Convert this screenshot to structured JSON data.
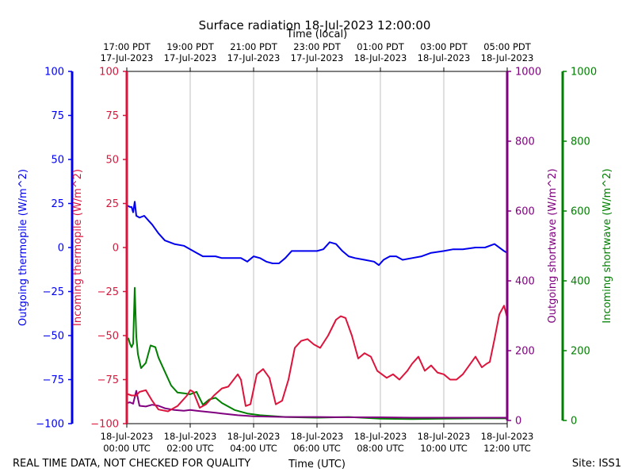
{
  "chart_data": {
    "type": "line",
    "title": "Surface radiation 18-Jul-2023 12:00:00",
    "top_axis_label": "Time (local)",
    "xlabel": "Time (UTC)",
    "footer_left": "REAL TIME DATA, NOT CHECKED FOR QUALITY",
    "footer_right": "Site: ISS1",
    "xlim": [
      0,
      12
    ],
    "x_ticks": [
      0,
      2,
      4,
      6,
      8,
      10,
      12
    ],
    "x_tick_labels_utc": [
      [
        "18-Jul-2023",
        "00:00 UTC"
      ],
      [
        "18-Jul-2023",
        "02:00 UTC"
      ],
      [
        "18-Jul-2023",
        "04:00 UTC"
      ],
      [
        "18-Jul-2023",
        "06:00 UTC"
      ],
      [
        "18-Jul-2023",
        "08:00 UTC"
      ],
      [
        "18-Jul-2023",
        "10:00 UTC"
      ],
      [
        "18-Jul-2023",
        "12:00 UTC"
      ]
    ],
    "x_tick_labels_local": [
      [
        "17:00 PDT",
        "17-Jul-2023"
      ],
      [
        "19:00 PDT",
        "17-Jul-2023"
      ],
      [
        "21:00 PDT",
        "17-Jul-2023"
      ],
      [
        "23:00 PDT",
        "17-Jul-2023"
      ],
      [
        "01:00 PDT",
        "18-Jul-2023"
      ],
      [
        "03:00 PDT",
        "18-Jul-2023"
      ],
      [
        "05:00 PDT",
        "18-Jul-2023"
      ]
    ],
    "axes": [
      {
        "id": "out_therm",
        "label": "Outgoing thermopile (W/m^2)",
        "color": "#0000ee",
        "ylim": [
          -100,
          100
        ],
        "ticks": [
          -100,
          -75,
          -50,
          -25,
          0,
          25,
          50,
          75,
          100
        ],
        "tick_labels": [
          "−100",
          "−75",
          "−50",
          "−25",
          "0",
          "25",
          "50",
          "75",
          "100"
        ]
      },
      {
        "id": "in_therm",
        "label": "Incoming thermopile (W/m^2)",
        "color": "#dc143c",
        "ylim": [
          -100,
          100
        ],
        "ticks": [
          -100,
          -75,
          -50,
          -25,
          0,
          25,
          50,
          75,
          100
        ],
        "tick_labels": [
          "−100",
          "−75",
          "−50",
          "−25",
          "0",
          "25",
          "50",
          "75",
          "100"
        ]
      },
      {
        "id": "out_sw",
        "label": "Outgoing shortwave (W/m^2)",
        "color": "#800080",
        "ylim": [
          0,
          1000
        ],
        "ticks": [
          0,
          200,
          400,
          600,
          800,
          1000
        ],
        "tick_labels": [
          "0",
          "200",
          "400",
          "600",
          "800",
          "1000"
        ]
      },
      {
        "id": "in_sw",
        "label": "Incoming shortwave (W/m^2)",
        "color": "#008000",
        "ylim": [
          0,
          1000
        ],
        "ticks": [
          0,
          200,
          400,
          600,
          800,
          1000
        ],
        "tick_labels": [
          "0",
          "200",
          "400",
          "600",
          "800",
          "1000"
        ]
      }
    ],
    "series": [
      {
        "name": "Outgoing thermopile",
        "axis": "out_therm",
        "color": "#0000ee",
        "x": [
          0,
          0.1,
          0.15,
          0.2,
          0.25,
          0.3,
          0.4,
          0.55,
          0.7,
          0.8,
          1.0,
          1.2,
          1.5,
          1.8,
          2.0,
          2.2,
          2.4,
          2.6,
          2.8,
          3.0,
          3.3,
          3.6,
          3.8,
          4.0,
          4.2,
          4.4,
          4.6,
          4.8,
          5.0,
          5.2,
          5.5,
          5.8,
          6.0,
          6.2,
          6.4,
          6.6,
          6.8,
          7.0,
          7.2,
          7.5,
          7.8,
          7.95,
          8.1,
          8.2,
          8.3,
          8.5,
          8.7,
          9.0,
          9.3,
          9.6,
          10.0,
          10.3,
          10.6,
          11.0,
          11.3,
          11.6,
          11.9,
          12.0
        ],
        "y": [
          24,
          23,
          23,
          20,
          26,
          18,
          17,
          18,
          15,
          13,
          8,
          4,
          2,
          1,
          -1,
          -3,
          -5,
          -5,
          -5,
          -6,
          -6,
          -6,
          -8,
          -5,
          -6,
          -8,
          -9,
          -9,
          -6,
          -2,
          -2,
          -2,
          -2,
          -1,
          3,
          2,
          -2,
          -5,
          -6,
          -7,
          -8,
          -10,
          -7,
          -6,
          -5,
          -5,
          -7,
          -6,
          -5,
          -3,
          -2,
          -1,
          -1,
          0,
          0,
          2,
          -2,
          -3
        ]
      },
      {
        "name": "Incoming thermopile",
        "axis": "in_therm",
        "color": "#dc143c",
        "x": [
          0,
          0.15,
          0.3,
          0.4,
          0.6,
          0.8,
          1.0,
          1.3,
          1.6,
          1.9,
          2.0,
          2.1,
          2.3,
          2.5,
          2.75,
          3.0,
          3.2,
          3.5,
          3.6,
          3.75,
          3.9,
          4.1,
          4.3,
          4.5,
          4.7,
          4.9,
          5.1,
          5.3,
          5.5,
          5.7,
          5.9,
          6.1,
          6.35,
          6.6,
          6.75,
          6.9,
          7.1,
          7.3,
          7.5,
          7.7,
          7.9,
          8.2,
          8.4,
          8.6,
          8.85,
          9.0,
          9.2,
          9.4,
          9.6,
          9.8,
          10.0,
          10.2,
          10.4,
          10.6,
          10.8,
          11.0,
          11.2,
          11.35,
          11.45,
          11.6,
          11.75,
          11.9,
          12.0
        ],
        "y": [
          -83,
          -84,
          -84,
          -82,
          -81,
          -87,
          -92,
          -93,
          -90,
          -84,
          -81,
          -82,
          -91,
          -89,
          -84,
          -80,
          -79,
          -72,
          -75,
          -90,
          -89,
          -72,
          -69,
          -74,
          -89,
          -87,
          -75,
          -57,
          -53,
          -52,
          -55,
          -57,
          -50,
          -41,
          -39,
          -40,
          -50,
          -63,
          -60,
          -62,
          -70,
          -74,
          -72,
          -75,
          -70,
          -66,
          -62,
          -70,
          -67,
          -71,
          -72,
          -75,
          -75,
          -72,
          -67,
          -62,
          -68,
          -66,
          -65,
          -52,
          -38,
          -33,
          -40
        ]
      },
      {
        "name": "Outgoing shortwave",
        "axis": "out_sw",
        "color": "#800080",
        "x": [
          0,
          0.1,
          0.2,
          0.3,
          0.4,
          0.6,
          0.8,
          1.0,
          1.2,
          1.5,
          1.8,
          2.0,
          2.2,
          2.5,
          2.8,
          3.0,
          3.5,
          4.0,
          5.0,
          6.0,
          7.0,
          8.0,
          9.0,
          10.0,
          11.0,
          12.0
        ],
        "y": [
          50,
          52,
          48,
          85,
          42,
          40,
          45,
          42,
          35,
          30,
          28,
          30,
          28,
          25,
          22,
          20,
          15,
          12,
          10,
          10,
          9,
          9,
          8,
          8,
          8,
          8
        ]
      },
      {
        "name": "Incoming shortwave",
        "axis": "in_sw",
        "color": "#008000",
        "x": [
          0,
          0.05,
          0.1,
          0.15,
          0.2,
          0.25,
          0.3,
          0.35,
          0.45,
          0.6,
          0.75,
          0.9,
          1.0,
          1.2,
          1.4,
          1.6,
          1.8,
          2.0,
          2.2,
          2.4,
          2.6,
          2.8,
          3.0,
          3.4,
          3.8,
          4.2,
          5.0,
          6.0,
          7.0,
          8.0,
          9.0,
          10.0,
          11.0,
          12.0
        ],
        "y": [
          230,
          235,
          220,
          210,
          220,
          380,
          240,
          190,
          150,
          165,
          215,
          210,
          180,
          140,
          100,
          80,
          78,
          75,
          82,
          45,
          60,
          65,
          50,
          30,
          20,
          15,
          10,
          8,
          10,
          5,
          4,
          5,
          6,
          6
        ]
      }
    ]
  }
}
